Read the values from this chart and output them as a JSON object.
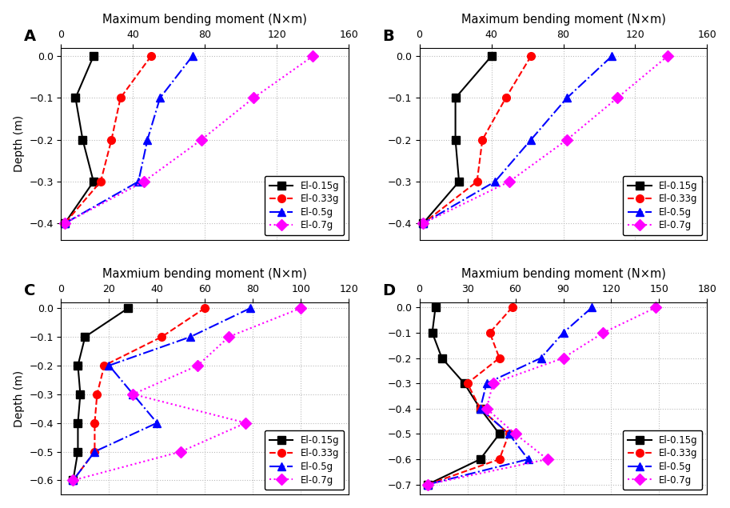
{
  "panels": [
    {
      "label": "A",
      "title": "Maximum bending moment (N×m)",
      "xlim": [
        0,
        160
      ],
      "xticks": [
        0,
        40,
        80,
        120,
        160
      ],
      "ylim": [
        -0.44,
        0.02
      ],
      "yticks": [
        0.0,
        -0.1,
        -0.2,
        -0.3,
        -0.4
      ],
      "series": [
        {
          "name": "El-0.15g",
          "color": "#000000",
          "linestyle": "-",
          "marker": "s",
          "x": [
            18,
            8,
            12,
            18,
            2
          ],
          "y": [
            0.0,
            -0.1,
            -0.2,
            -0.3,
            -0.4
          ]
        },
        {
          "name": "El-0.33g",
          "color": "#ff0000",
          "linestyle": "--",
          "marker": "o",
          "x": [
            50,
            33,
            28,
            22,
            2
          ],
          "y": [
            0.0,
            -0.1,
            -0.2,
            -0.3,
            -0.4
          ]
        },
        {
          "name": "El-0.5g",
          "color": "#0000ff",
          "linestyle": "-.",
          "marker": "^",
          "x": [
            73,
            55,
            48,
            43,
            2
          ],
          "y": [
            0.0,
            -0.1,
            -0.2,
            -0.3,
            -0.4
          ]
        },
        {
          "name": "El-0.7g",
          "color": "#ff00ff",
          "linestyle": ":",
          "marker": "D",
          "x": [
            140,
            107,
            78,
            46,
            2
          ],
          "y": [
            0.0,
            -0.1,
            -0.2,
            -0.3,
            -0.4
          ]
        }
      ]
    },
    {
      "label": "B",
      "title": "Maximum bending moment (N×m)",
      "xlim": [
        0,
        160
      ],
      "xticks": [
        0,
        40,
        80,
        120,
        160
      ],
      "ylim": [
        -0.44,
        0.02
      ],
      "yticks": [
        0.0,
        -0.1,
        -0.2,
        -0.3,
        -0.4
      ],
      "series": [
        {
          "name": "El-0.15g",
          "color": "#000000",
          "linestyle": "-",
          "marker": "s",
          "x": [
            40,
            20,
            20,
            22,
            2
          ],
          "y": [
            0.0,
            -0.1,
            -0.2,
            -0.3,
            -0.4
          ]
        },
        {
          "name": "El-0.33g",
          "color": "#ff0000",
          "linestyle": "--",
          "marker": "o",
          "x": [
            62,
            48,
            35,
            32,
            2
          ],
          "y": [
            0.0,
            -0.1,
            -0.2,
            -0.3,
            -0.4
          ]
        },
        {
          "name": "El-0.5g",
          "color": "#0000ff",
          "linestyle": "-.",
          "marker": "^",
          "x": [
            107,
            82,
            62,
            42,
            2
          ],
          "y": [
            0.0,
            -0.1,
            -0.2,
            -0.3,
            -0.4
          ]
        },
        {
          "name": "El-0.7g",
          "color": "#ff00ff",
          "linestyle": ":",
          "marker": "D",
          "x": [
            138,
            110,
            82,
            50,
            2
          ],
          "y": [
            0.0,
            -0.1,
            -0.2,
            -0.3,
            -0.4
          ]
        }
      ]
    },
    {
      "label": "C",
      "title": "Maxmium bending moment (N×m)",
      "xlim": [
        0,
        120
      ],
      "xticks": [
        0,
        20,
        40,
        60,
        80,
        100,
        120
      ],
      "ylim": [
        -0.65,
        0.02
      ],
      "yticks": [
        0.0,
        -0.1,
        -0.2,
        -0.3,
        -0.4,
        -0.5,
        -0.6
      ],
      "series": [
        {
          "name": "El-0.15g",
          "color": "#000000",
          "linestyle": "-",
          "marker": "s",
          "x": [
            28,
            10,
            7,
            8,
            7,
            7,
            5
          ],
          "y": [
            0.0,
            -0.1,
            -0.2,
            -0.3,
            -0.4,
            -0.5,
            -0.6
          ]
        },
        {
          "name": "El-0.33g",
          "color": "#ff0000",
          "linestyle": "--",
          "marker": "o",
          "x": [
            60,
            42,
            18,
            15,
            14,
            14,
            5
          ],
          "y": [
            0.0,
            -0.1,
            -0.2,
            -0.3,
            -0.4,
            -0.5,
            -0.6
          ]
        },
        {
          "name": "El-0.5g",
          "color": "#0000ff",
          "linestyle": "-.",
          "marker": "^",
          "x": [
            79,
            54,
            20,
            30,
            40,
            14,
            5
          ],
          "y": [
            0.0,
            -0.1,
            -0.2,
            -0.3,
            -0.4,
            -0.5,
            -0.6
          ]
        },
        {
          "name": "El-0.7g",
          "color": "#ff00ff",
          "linestyle": ":",
          "marker": "D",
          "x": [
            100,
            70,
            57,
            30,
            77,
            50,
            5
          ],
          "y": [
            0.0,
            -0.1,
            -0.2,
            -0.3,
            -0.4,
            -0.5,
            -0.6
          ]
        }
      ]
    },
    {
      "label": "D",
      "title": "Maxmium bending moment (N×m)",
      "xlim": [
        0,
        180
      ],
      "xticks": [
        0,
        30,
        60,
        90,
        120,
        150,
        180
      ],
      "ylim": [
        -0.74,
        0.02
      ],
      "yticks": [
        0.0,
        -0.1,
        -0.2,
        -0.3,
        -0.4,
        -0.5,
        -0.6,
        -0.7
      ],
      "series": [
        {
          "name": "El-0.15g",
          "color": "#000000",
          "linestyle": "-",
          "marker": "s",
          "x": [
            10,
            8,
            14,
            28,
            38,
            50,
            38,
            5
          ],
          "y": [
            0.0,
            -0.1,
            -0.2,
            -0.3,
            -0.4,
            -0.5,
            -0.6,
            -0.7
          ]
        },
        {
          "name": "El-0.33g",
          "color": "#ff0000",
          "linestyle": "--",
          "marker": "o",
          "x": [
            58,
            44,
            50,
            30,
            38,
            56,
            50,
            5
          ],
          "y": [
            0.0,
            -0.1,
            -0.2,
            -0.3,
            -0.4,
            -0.5,
            -0.6,
            -0.7
          ]
        },
        {
          "name": "El-0.5g",
          "color": "#0000ff",
          "linestyle": "-.",
          "marker": "^",
          "x": [
            108,
            90,
            76,
            42,
            38,
            56,
            68,
            5
          ],
          "y": [
            0.0,
            -0.1,
            -0.2,
            -0.3,
            -0.4,
            -0.5,
            -0.6,
            -0.7
          ]
        },
        {
          "name": "El-0.7g",
          "color": "#ff00ff",
          "linestyle": ":",
          "marker": "D",
          "x": [
            148,
            115,
            90,
            46,
            42,
            60,
            80,
            5
          ],
          "y": [
            0.0,
            -0.1,
            -0.2,
            -0.3,
            -0.4,
            -0.5,
            -0.6,
            -0.7
          ]
        }
      ]
    }
  ],
  "background_color": "#ffffff",
  "grid_color": "#bbbbbb",
  "legend_fontsize": 8.5,
  "title_fontsize": 10.5,
  "label_fontsize": 10,
  "tick_fontsize": 9
}
